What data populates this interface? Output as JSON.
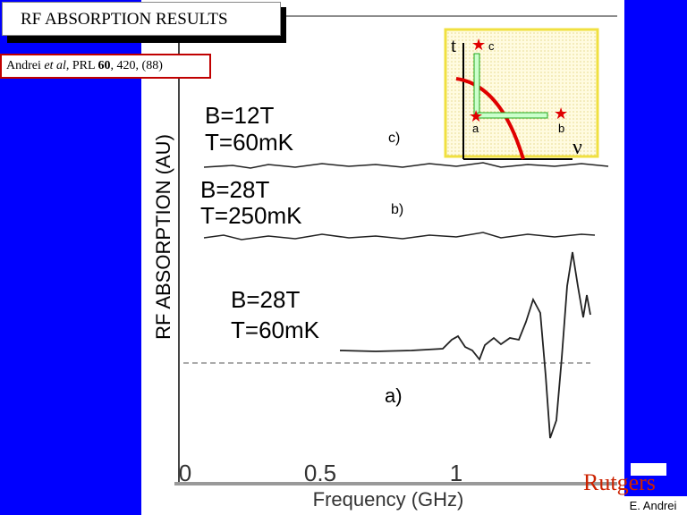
{
  "header": {
    "title": "RF ABSORPTION RESULTS"
  },
  "citation": {
    "authors": "Andrei",
    "etal": "et al,",
    "journal": "PRL",
    "volume": "60",
    "rest": ", 420, (88)"
  },
  "plot": {
    "y_label": "RF ABSORPTION (AU)",
    "x_label": "Frequency  (GHz)",
    "x_ticks": [
      "0",
      "0.5",
      "1"
    ],
    "traces": [
      {
        "label": "c)",
        "field": "B=12T",
        "temperature": "T=60mK"
      },
      {
        "label": "b)",
        "field": "B=28T",
        "temperature": "T=250mK"
      },
      {
        "label": "a)",
        "field": "B=28T",
        "temperature": "T=60mK"
      }
    ]
  },
  "inset": {
    "axis_t": "t",
    "axis_nu": "ν",
    "points": [
      "c",
      "a",
      "b"
    ]
  },
  "footer": {
    "logo": "Rutgers",
    "author": "E. Andrei"
  }
}
